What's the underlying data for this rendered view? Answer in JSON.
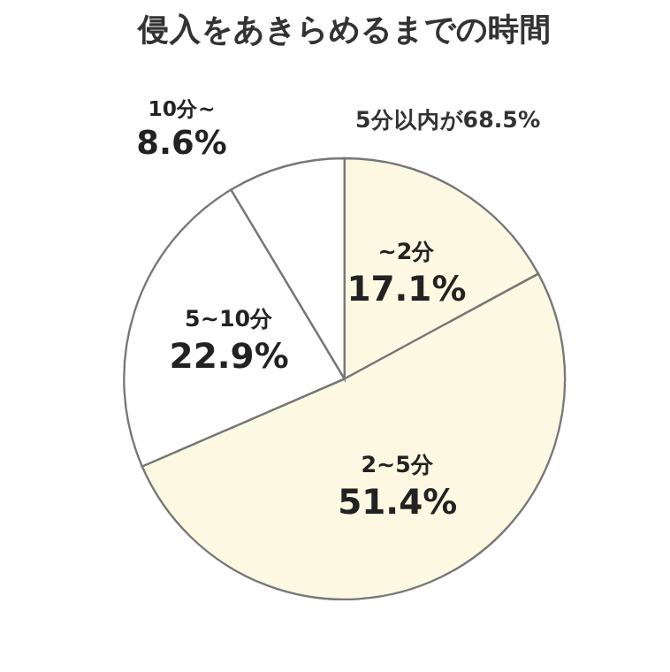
{
  "chart_data": {
    "type": "pie",
    "title": "侵入をあきらめるまでの時間",
    "categories": [
      "~2分",
      "2~5分",
      "5~10分",
      "10分~"
    ],
    "values": [
      17.1,
      51.4,
      22.9,
      8.6
    ],
    "value_labels": [
      "17.1%",
      "51.4%",
      "22.9%",
      "8.6%"
    ],
    "colors": [
      "#fdf8e1",
      "#fdf8e1",
      "#ffffff",
      "#ffffff"
    ],
    "annotations": [
      "5分以内が68.5%"
    ],
    "legend": false
  }
}
